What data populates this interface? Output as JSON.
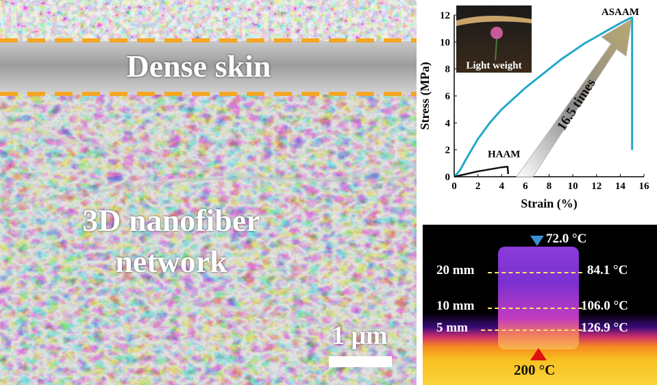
{
  "sem": {
    "label_skin": "Dense skin",
    "label_network_line1": "3D nanofiber",
    "label_network_line2": "network",
    "scale_text": "1 μm",
    "dash_color": "#f5a623"
  },
  "chart_data": {
    "type": "line",
    "xlabel": "Strain (%)",
    "ylabel": "Stress (MPa)",
    "xlim": [
      0,
      16
    ],
    "ylim": [
      0,
      12
    ],
    "xticks": [
      "0",
      "2",
      "4",
      "6",
      "8",
      "10",
      "12",
      "14",
      "16"
    ],
    "yticks": [
      "0",
      "2",
      "4",
      "6",
      "8",
      "10",
      "12"
    ],
    "series": [
      {
        "name": "ASAAM",
        "color": "#22a8c8",
        "x": [
          0,
          0.5,
          1,
          2,
          3,
          4,
          5,
          6,
          7,
          8,
          9,
          10,
          11,
          12,
          13,
          14,
          14.9,
          15.0,
          15.0
        ],
        "y": [
          0,
          0.5,
          1.3,
          2.8,
          4.0,
          5.0,
          5.8,
          6.6,
          7.3,
          8.0,
          8.7,
          9.3,
          9.9,
          10.4,
          10.9,
          11.4,
          11.8,
          11.8,
          2.0
        ]
      },
      {
        "name": "HAAM",
        "color": "#111111",
        "x": [
          0,
          0.5,
          1,
          2,
          3,
          4,
          4.5,
          4.55
        ],
        "y": [
          0,
          0.1,
          0.2,
          0.4,
          0.55,
          0.7,
          0.75,
          0.2
        ]
      }
    ],
    "annotations": {
      "arrow_text": "16.5 times",
      "inset_text": "Light weight"
    }
  },
  "thermal": {
    "top_temp": "72.0 °C",
    "bottom_temp": "200 °C",
    "rows": [
      {
        "height": "20 mm",
        "temp": "84.1 °C"
      },
      {
        "height": "10 mm",
        "temp": "106.0 °C"
      },
      {
        "height": "5 mm",
        "temp": "126.9 °C"
      }
    ]
  }
}
